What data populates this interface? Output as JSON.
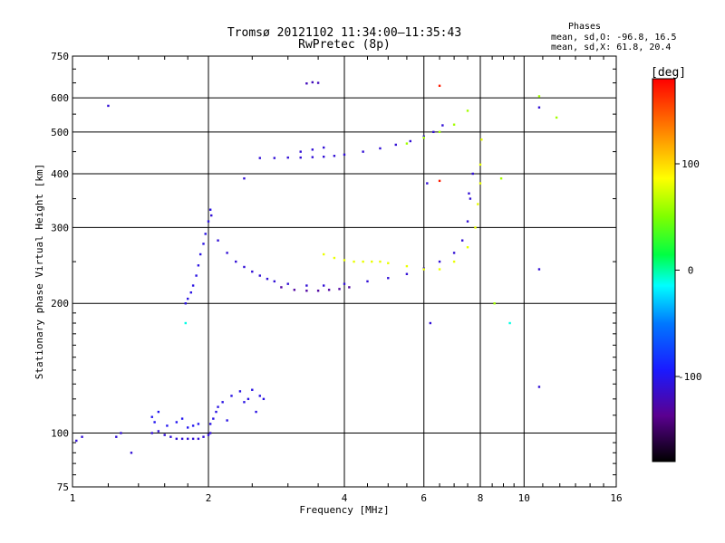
{
  "header": {
    "title_line1": "Tromsø 20121102 11:34:00–11:35:43",
    "title_line2": "RwPretec (8p)",
    "phase_title": "Phases",
    "phase_o": "mean, sd,O: -96.8, 16.5",
    "phase_x": "mean, sd,X:  61.8, 20.4"
  },
  "colorbar": {
    "label": "[deg]",
    "ticks": [
      {
        "value": 100,
        "label": "100"
      },
      {
        "value": 0,
        "label": "0"
      },
      {
        "value": -100,
        "label": "-100"
      }
    ],
    "range": [
      -180,
      180
    ]
  },
  "chart_data": {
    "type": "scatter",
    "title": "Tromsø 20121102 11:34:00–11:35:43",
    "subtitle": "RwPretec (8p)",
    "xlabel": "Frequency [MHz]",
    "ylabel": "Stationary phase Virtual Height [km]",
    "x_scale": "log",
    "y_scale": "log",
    "xlim": [
      1,
      16
    ],
    "ylim": [
      75,
      750
    ],
    "x_ticks": [
      {
        "value": 1,
        "label": "1"
      },
      {
        "value": 2,
        "label": "2"
      },
      {
        "value": 4,
        "label": "4"
      },
      {
        "value": 6,
        "label": "6"
      },
      {
        "value": 8,
        "label": "8"
      },
      {
        "value": 10,
        "label": "10"
      },
      {
        "value": 16,
        "label": "16"
      }
    ],
    "y_ticks": [
      {
        "value": 75,
        "label": "75"
      },
      {
        "value": 100,
        "label": "100"
      },
      {
        "value": 200,
        "label": "200"
      },
      {
        "value": 300,
        "label": "300"
      },
      {
        "value": 400,
        "label": "400"
      },
      {
        "value": 500,
        "label": "500"
      },
      {
        "value": 600,
        "label": "600"
      },
      {
        "value": 750,
        "label": "750"
      }
    ],
    "grid": true,
    "series": [
      {
        "color_phase": -110,
        "x": [
          1.02,
          1.05,
          1.25,
          1.28,
          1.35,
          1.5,
          1.55,
          1.6,
          1.65,
          1.7,
          1.75,
          1.8,
          1.85,
          1.9,
          1.95,
          2.0,
          2.02
        ],
        "y": [
          96,
          98,
          98,
          100,
          90,
          100,
          101,
          99,
          98,
          97,
          97,
          97,
          97,
          97,
          98,
          99,
          100
        ]
      },
      {
        "color_phase": -100,
        "x": [
          1.5,
          1.52,
          1.55,
          1.62,
          1.7,
          1.75,
          1.8,
          1.85,
          1.9
        ],
        "y": [
          109,
          106,
          112,
          104,
          106,
          108,
          103,
          104,
          105
        ]
      },
      {
        "color_phase": -105,
        "x": [
          2.02,
          2.05,
          2.08,
          2.1,
          2.15,
          2.2,
          2.25,
          2.35,
          2.4,
          2.45,
          2.5,
          2.55,
          2.6,
          2.65
        ],
        "y": [
          105,
          108,
          112,
          115,
          118,
          107,
          122,
          125,
          118,
          120,
          126,
          112,
          122,
          120
        ]
      },
      {
        "color_phase": -105,
        "x": [
          1.78,
          1.8,
          1.83,
          1.85,
          1.88,
          1.9,
          1.92,
          1.95,
          1.97,
          2.0,
          2.02
        ],
        "y": [
          200,
          205,
          212,
          220,
          232,
          245,
          260,
          275,
          290,
          310,
          330
        ]
      },
      {
        "color_phase": -110,
        "x": [
          2.03,
          2.1,
          2.2,
          2.3,
          2.4,
          2.5,
          2.6,
          2.7,
          2.8,
          3.0,
          3.3,
          3.6,
          4.0,
          4.5,
          5.0,
          5.5,
          6.0,
          6.5,
          7.0,
          7.3,
          7.5,
          7.6,
          7.7
        ],
        "y": [
          320,
          280,
          262,
          250,
          243,
          237,
          232,
          228,
          225,
          222,
          220,
          220,
          222,
          225,
          229,
          234,
          241,
          250,
          262,
          280,
          310,
          350,
          400
        ]
      },
      {
        "color_phase": -130,
        "x": [
          2.9,
          3.1,
          3.3,
          3.5,
          3.7,
          3.9,
          4.1
        ],
        "y": [
          218,
          215,
          214,
          214,
          215,
          216,
          218
        ]
      },
      {
        "color_phase": 80,
        "x": [
          3.6,
          3.8,
          4.0,
          4.2,
          4.4,
          4.6,
          4.8,
          5.0,
          5.5,
          6.0,
          6.5,
          7.0,
          7.5,
          7.8,
          7.9,
          8.0,
          8.0,
          8.05
        ],
        "y": [
          260,
          255,
          252,
          250,
          250,
          250,
          250,
          248,
          244,
          240,
          240,
          250,
          270,
          300,
          340,
          380,
          420,
          480
        ]
      },
      {
        "color_phase": -110,
        "x": [
          2.6,
          2.8,
          3.0,
          3.2,
          3.4,
          3.6,
          3.8,
          4.0,
          4.4,
          4.8,
          5.2,
          5.6,
          6.0,
          6.3,
          6.6
        ],
        "y": [
          435,
          435,
          436,
          436,
          437,
          438,
          440,
          443,
          450,
          458,
          467,
          476,
          488,
          500,
          518
        ]
      },
      {
        "color_phase": -110,
        "x": [
          3.2,
          3.4,
          3.6
        ],
        "y": [
          450,
          455,
          460
        ]
      },
      {
        "color_phase": 60,
        "x": [
          5.5,
          6.0,
          6.5,
          7.0,
          7.5
        ],
        "y": [
          470,
          485,
          500,
          520,
          560
        ]
      },
      {
        "color_phase": -120,
        "x": [
          3.3,
          3.4,
          3.5
        ],
        "y": [
          648,
          652,
          650
        ]
      },
      {
        "color_phase": -110,
        "x": [
          1.2,
          2.4,
          6.1,
          6.2,
          7.55,
          10.8,
          10.8,
          10.8
        ],
        "y": [
          575,
          390,
          380,
          180,
          360,
          570,
          240,
          128
        ]
      },
      {
        "color_phase": -10,
        "x": [
          1.78,
          9.3
        ],
        "y": [
          180,
          180
        ]
      },
      {
        "color_phase": 60,
        "x": [
          10.8,
          11.8,
          8.6,
          8.9
        ],
        "y": [
          605,
          540,
          200,
          390
        ]
      },
      {
        "color_phase": 170,
        "x": [
          6.5,
          6.5
        ],
        "y": [
          640,
          385
        ]
      }
    ]
  }
}
